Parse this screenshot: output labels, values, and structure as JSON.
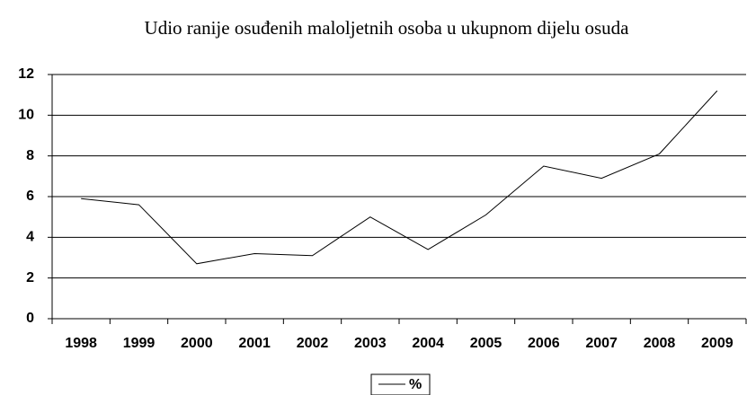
{
  "chart_data": {
    "type": "line",
    "title": "Udio ranije osuđenih maloljetnih osoba u ukupnom dijelu osuda",
    "categories": [
      "1998",
      "1999",
      "2000",
      "2001",
      "2002",
      "2003",
      "2004",
      "2005",
      "2006",
      "2007",
      "2008",
      "2009"
    ],
    "series": [
      {
        "name": "%",
        "color": "#000000",
        "values": [
          5.9,
          5.6,
          2.7,
          3.2,
          3.1,
          5.0,
          3.4,
          5.1,
          7.5,
          6.9,
          8.1,
          11.2
        ]
      }
    ],
    "ylim": [
      0,
      12
    ],
    "yticks": [
      0,
      2,
      4,
      6,
      8,
      10,
      12
    ],
    "grid": true,
    "legend": "bottom"
  }
}
